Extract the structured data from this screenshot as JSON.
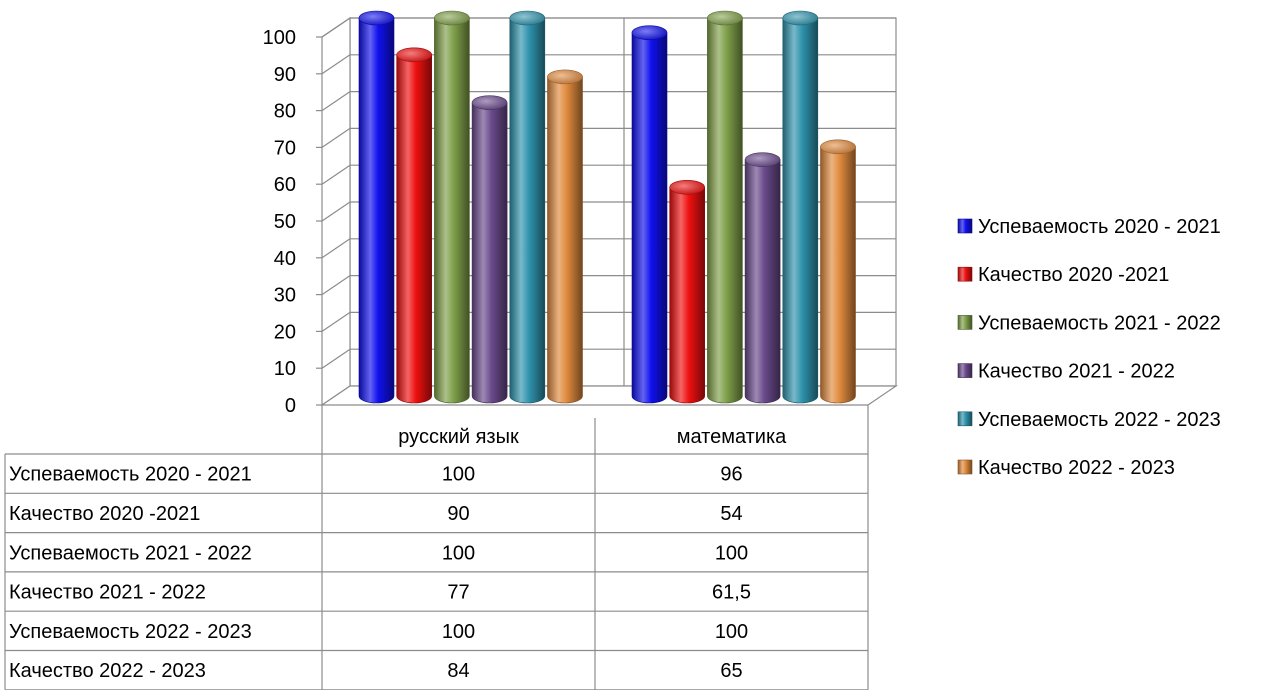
{
  "chart_data": {
    "type": "bar",
    "categories": [
      "русский язык",
      "математика"
    ],
    "series": [
      {
        "name": "Успеваемость 2020 - 2021",
        "values": [
          "100",
          "96"
        ],
        "color": "#1010ee"
      },
      {
        "name": "Качество 2020 -2021",
        "values": [
          "90",
          "54"
        ],
        "color": "#ee1010"
      },
      {
        "name": "Успеваемость 2021 - 2022",
        "values": [
          "100",
          "100"
        ],
        "color": "#7fa04a"
      },
      {
        "name": "Качество 2021 - 2022",
        "values": [
          "77",
          "61,5"
        ],
        "color": "#6a4a8c"
      },
      {
        "name": "Успеваемость 2022 - 2023",
        "values": [
          "100",
          "100"
        ],
        "color": "#2f93ad"
      },
      {
        "name": "Качество 2022 - 2023",
        "values": [
          "84",
          "65"
        ],
        "color": "#e08a3e"
      }
    ],
    "yticks": [
      "0",
      "10",
      "20",
      "30",
      "40",
      "50",
      "60",
      "70",
      "80",
      "90",
      "100"
    ],
    "ylim": [
      0,
      100
    ],
    "grid": true,
    "legend": "right",
    "data_table": true
  }
}
